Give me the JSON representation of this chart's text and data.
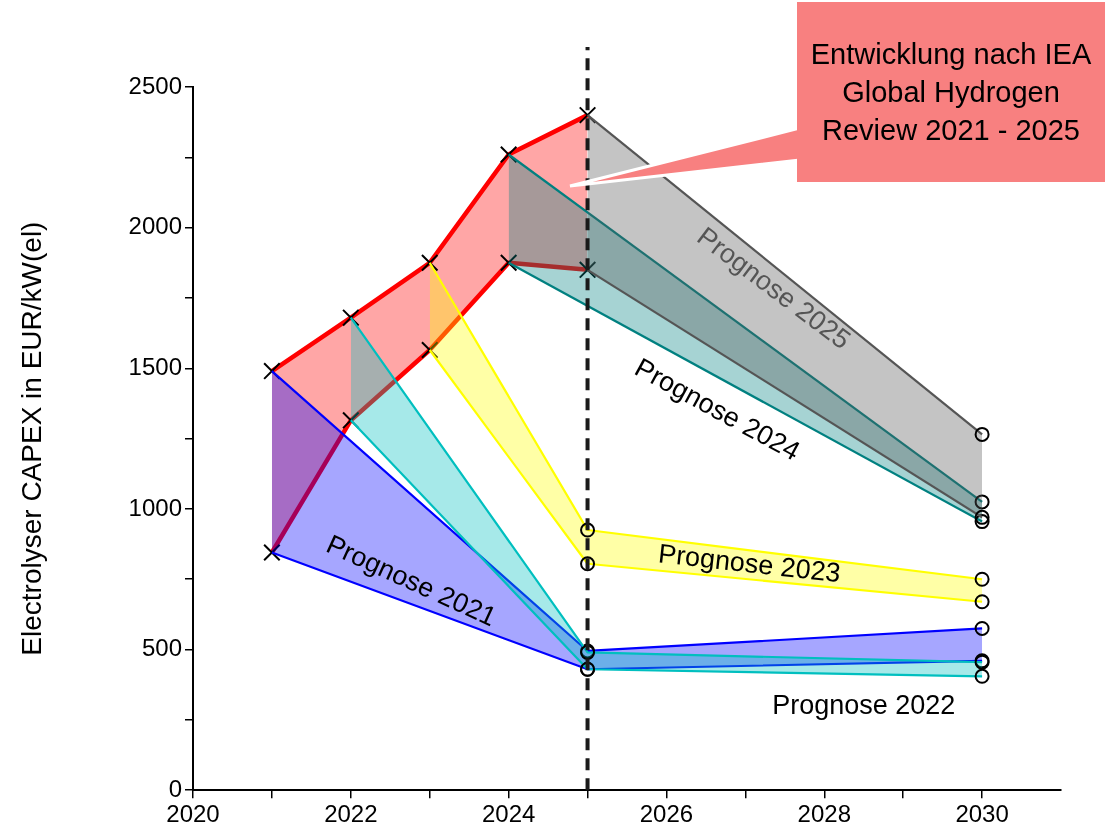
{
  "chart_data": {
    "type": "line",
    "ylabel": "Electrolyser CAPEX in EUR/kW(el)",
    "xlim": [
      2020,
      2031
    ],
    "xticks": [
      2020,
      {
        "value": 2021,
        "label": null
      },
      2022,
      {
        "value": 2023,
        "label": null
      },
      2024,
      {
        "value": 2025,
        "label": null
      },
      2026,
      {
        "value": 2027,
        "label": null
      },
      2028,
      {
        "value": 2029,
        "label": null
      },
      2030
    ],
    "ylim": [
      0,
      2500
    ],
    "yticks": [
      0,
      {
        "value": 250,
        "label": null
      },
      500,
      {
        "value": 750,
        "label": null
      },
      1000,
      {
        "value": 1250,
        "label": null
      },
      1500,
      {
        "value": 1750,
        "label": null
      },
      2000,
      {
        "value": 2250,
        "label": null
      },
      2500
    ],
    "grid": false,
    "legend": false,
    "line_style": "solid",
    "series": [
      {
        "color": "#ff0000",
        "marker": "cross",
        "x": [
          2021,
          2022,
          2023,
          2024,
          2025
        ],
        "values": [
          1490,
          1680,
          1875,
          2260,
          2400
        ],
        "lower": [
          845,
          1315,
          1565,
          1875,
          1850
        ],
        "upper": [
          1490,
          1680,
          1875,
          2260,
          2400
        ]
      },
      {
        "color": "#ff0000",
        "marker": "cross",
        "x": [
          2021,
          2022,
          2023,
          2024,
          2025
        ],
        "values": [
          845,
          1315,
          1565,
          1875,
          1850
        ]
      },
      {
        "name": "Prognose 2021",
        "color": "#0000ff",
        "marker": "circle",
        "x": [
          2021,
          2025,
          2030
        ],
        "values": [
          1490,
          495,
          575
        ],
        "lower": [
          845,
          430,
          460
        ],
        "upper": [
          1490,
          495,
          575
        ]
      },
      {
        "color": "#0000ff",
        "marker": "circle",
        "x": [
          2021,
          2025,
          2030
        ],
        "values": [
          845,
          430,
          460
        ]
      },
      {
        "name": "Prognose 2022",
        "color": "#00bfbf",
        "marker": "circle",
        "x": [
          2022,
          2025,
          2030
        ],
        "values": [
          1680,
          490,
          455
        ],
        "lower": [
          1315,
          430,
          405
        ],
        "upper": [
          1680,
          490,
          455
        ]
      },
      {
        "color": "#00bfbf",
        "marker": "circle",
        "x": [
          2022,
          2025,
          2030
        ],
        "values": [
          1315,
          430,
          405
        ]
      },
      {
        "name": "Prognose 2023",
        "color": "#ffff00",
        "marker": "circle",
        "x": [
          2023,
          2025,
          2030
        ],
        "values": [
          1875,
          925,
          750
        ],
        "lower": [
          1565,
          805,
          670
        ],
        "upper": [
          1875,
          925,
          750
        ]
      },
      {
        "color": "#ffff00",
        "marker": "circle",
        "x": [
          2023,
          2025,
          2030
        ],
        "values": [
          1565,
          805,
          670
        ]
      },
      {
        "name": "Prognose 2024",
        "color": "#008080",
        "marker": "circle",
        "x": [
          2024,
          2030
        ],
        "values": [
          2260,
          1025
        ],
        "lower": [
          1875,
          955
        ],
        "upper": [
          2260,
          1025
        ]
      },
      {
        "color": "#008080",
        "marker": "circle",
        "x": [
          2024,
          2030
        ],
        "values": [
          1875,
          955
        ]
      },
      {
        "name": "Prognose 2025",
        "color": "#555555",
        "marker": "circle",
        "x": [
          2025,
          2030
        ],
        "values": [
          2400,
          1265
        ],
        "lower": [
          1850,
          970
        ],
        "upper": [
          2400,
          1265
        ]
      },
      {
        "color": "#555555",
        "marker": "circle",
        "x": [
          2025,
          2030
        ],
        "values": [
          1850,
          970
        ]
      }
    ],
    "ref_lines": [
      {
        "axis": "x",
        "value": 2025,
        "color": "#1a1a1a",
        "line_style": "dashed"
      }
    ],
    "annotations": [
      "Entwicklung nach IEA Global Hydrogen Review 2021 - 2025"
    ]
  }
}
